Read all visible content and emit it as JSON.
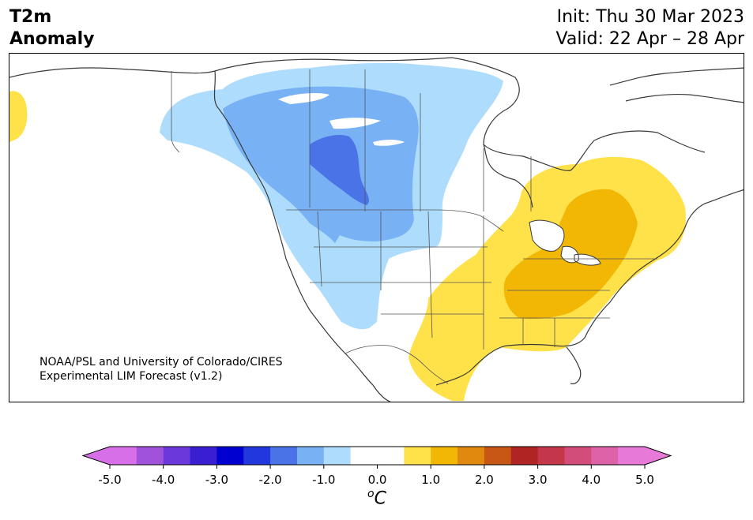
{
  "header": {
    "variable": "T2m",
    "anomaly": "Anomaly",
    "init": "Init: Thu 30 Mar 2023",
    "valid": "Valid: 22 Apr – 28 Apr"
  },
  "credit": {
    "line1": "NOAA/PSL and University of Colorado/CIRES",
    "line2": "Experimental LIM Forecast (v1.2)"
  },
  "colorbar": {
    "under_color": "#d66fe8",
    "over_color": "#e77ad8",
    "bins": [
      {
        "from": -5.0,
        "to": -4.5,
        "color": "#d66fe8"
      },
      {
        "from": -4.5,
        "to": -4.0,
        "color": "#a052db"
      },
      {
        "from": -4.0,
        "to": -3.5,
        "color": "#6b38dc"
      },
      {
        "from": -3.5,
        "to": -3.0,
        "color": "#3a1fd2"
      },
      {
        "from": -3.0,
        "to": -2.5,
        "color": "#0000d0"
      },
      {
        "from": -2.5,
        "to": -2.0,
        "color": "#2237dd"
      },
      {
        "from": -2.0,
        "to": -1.5,
        "color": "#4a73e7"
      },
      {
        "from": -1.5,
        "to": -1.0,
        "color": "#78b2f5"
      },
      {
        "from": -1.0,
        "to": -0.5,
        "color": "#aedcfd"
      },
      {
        "from": -0.5,
        "to": 0.5,
        "color": "#ffffff"
      },
      {
        "from": 0.5,
        "to": 1.0,
        "color": "#ffe14a"
      },
      {
        "from": 1.0,
        "to": 1.5,
        "color": "#f2b705"
      },
      {
        "from": 1.5,
        "to": 2.0,
        "color": "#e0890e"
      },
      {
        "from": 2.0,
        "to": 2.5,
        "color": "#c85614"
      },
      {
        "from": 2.5,
        "to": 3.0,
        "color": "#b02424"
      },
      {
        "from": 3.0,
        "to": 3.5,
        "color": "#c4374a"
      },
      {
        "from": 3.5,
        "to": 4.0,
        "color": "#d24d7a"
      },
      {
        "from": 4.0,
        "to": 4.5,
        "color": "#de62a8"
      },
      {
        "from": 4.5,
        "to": 5.0,
        "color": "#e77ad8"
      }
    ],
    "ticks": [
      "-5.0",
      "-4.0",
      "-3.0",
      "-2.0",
      "-1.0",
      "0.0",
      "1.0",
      "2.0",
      "3.0",
      "4.0",
      "5.0"
    ],
    "unit_sup": "o",
    "unit": "C"
  },
  "map_colors": {
    "cool_1": "#aedcfd",
    "cool_2": "#78b2f5",
    "cool_3": "#4a73e7",
    "warm_1": "#ffe14a",
    "warm_2": "#f2b705",
    "coast": "#3a3a3a"
  }
}
